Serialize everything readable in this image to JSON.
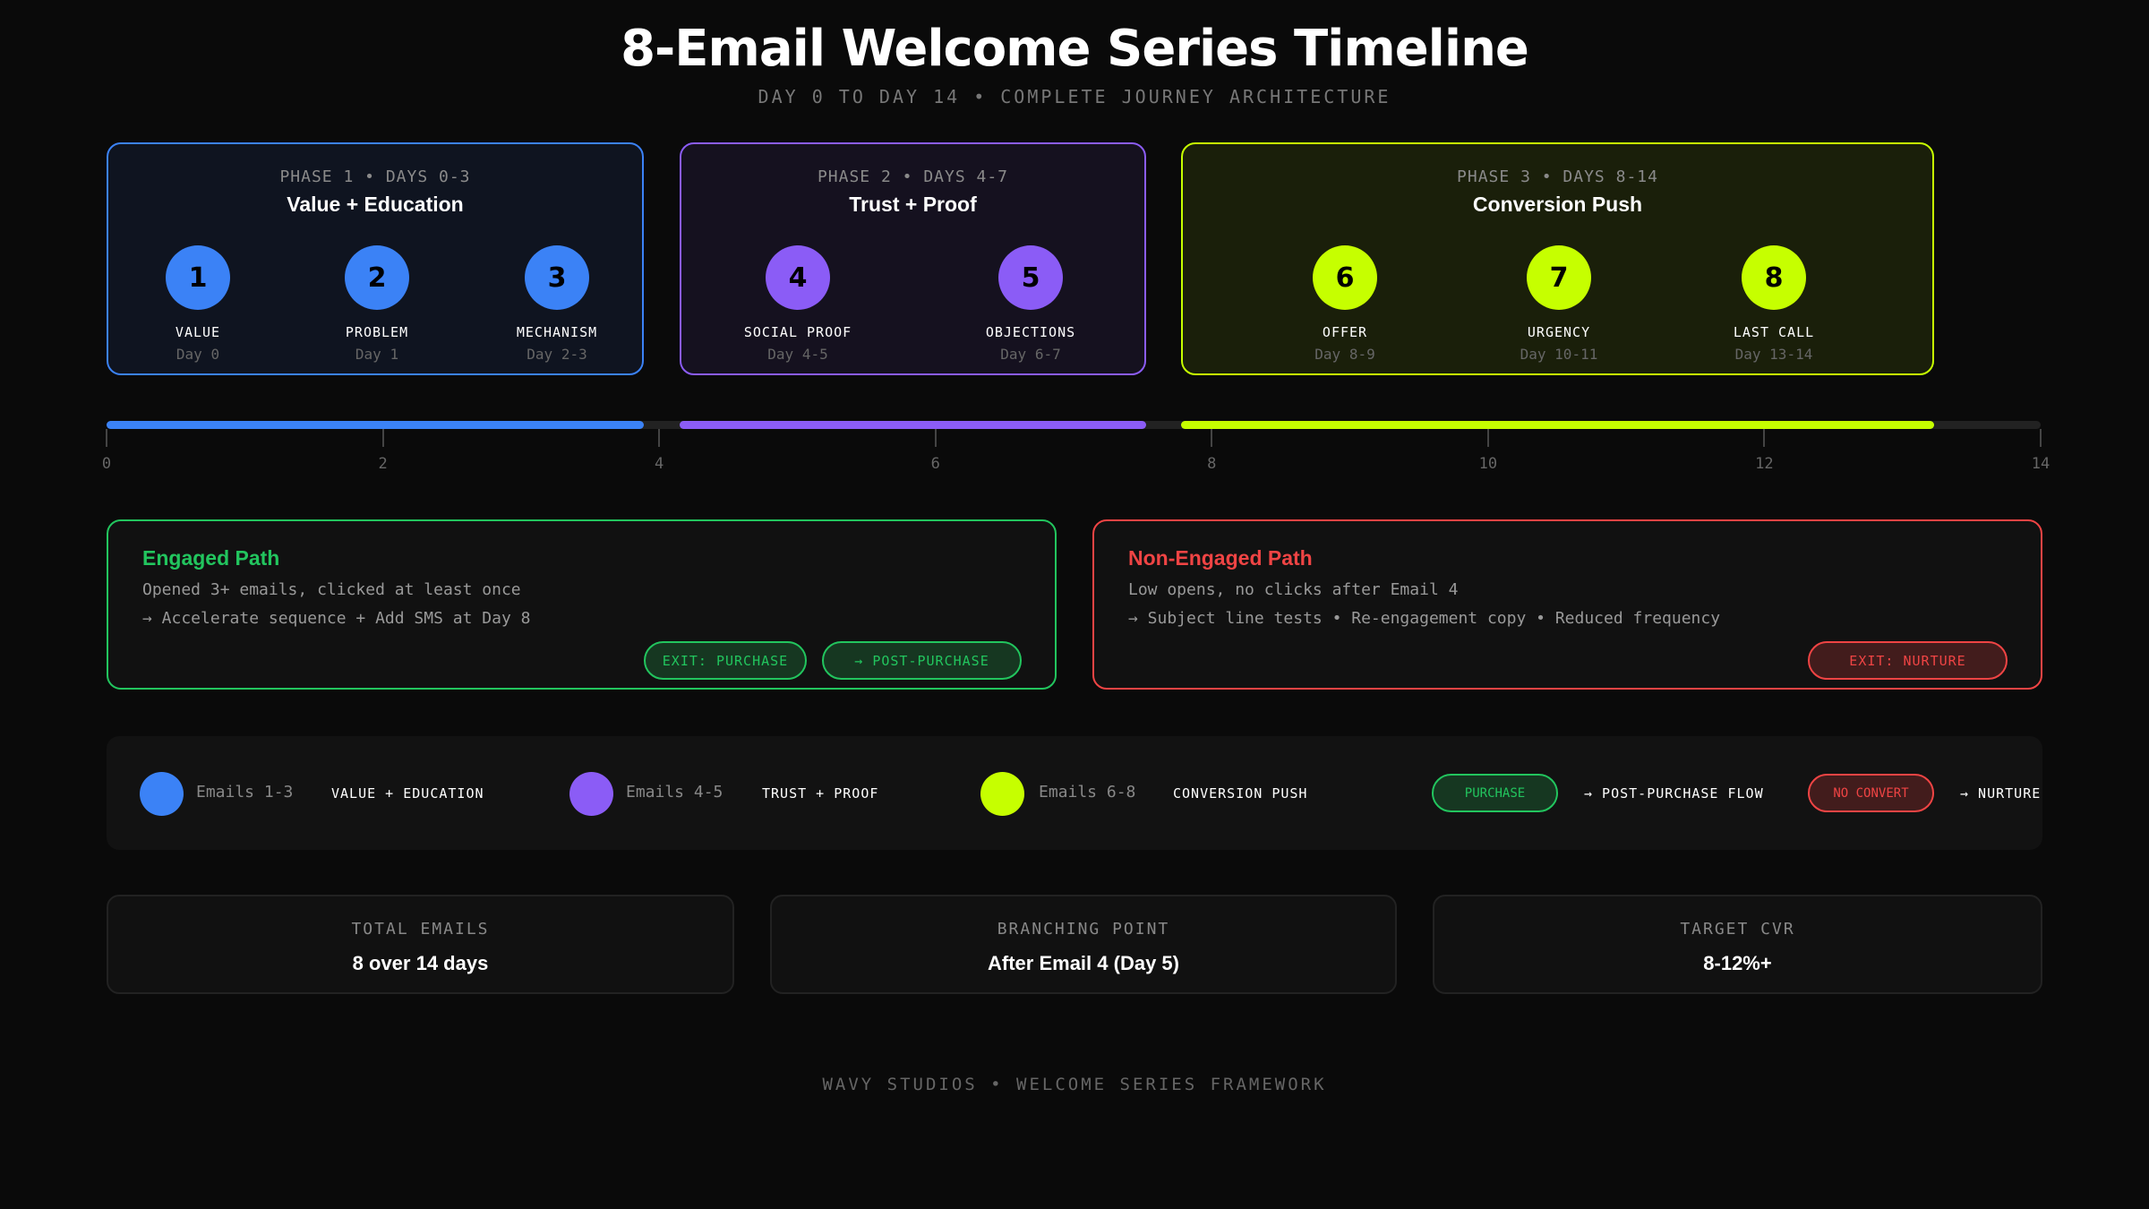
{
  "header": {
    "title": "8-Email Welcome Series Timeline",
    "subtitle": "DAY 0 TO DAY 14 • COMPLETE JOURNEY ARCHITECTURE"
  },
  "colors": {
    "phase1": "#3b82f6",
    "phase2": "#8b5cf6",
    "phase3": "#c6ff00",
    "engaged": "#22c55e",
    "non_engaged": "#ef4444"
  },
  "phases": [
    {
      "label": "PHASE 1 • DAYS 0-3",
      "title": "Value + Education",
      "emails": [
        {
          "num": "1",
          "name": "VALUE",
          "day": "Day 0"
        },
        {
          "num": "2",
          "name": "PROBLEM",
          "day": "Day 1"
        },
        {
          "num": "3",
          "name": "MECHANISM",
          "day": "Day 2-3"
        }
      ]
    },
    {
      "label": "PHASE 2 • DAYS 4-7",
      "title": "Trust + Proof",
      "emails": [
        {
          "num": "4",
          "name": "SOCIAL PROOF",
          "day": "Day 4-5"
        },
        {
          "num": "5",
          "name": "OBJECTIONS",
          "day": "Day 6-7"
        }
      ]
    },
    {
      "label": "PHASE 3 • DAYS 8-14",
      "title": "Conversion Push",
      "emails": [
        {
          "num": "6",
          "name": "OFFER",
          "day": "Day 8-9"
        },
        {
          "num": "7",
          "name": "URGENCY",
          "day": "Day 10-11"
        },
        {
          "num": "8",
          "name": "LAST CALL",
          "day": "Day 13-14"
        }
      ]
    }
  ],
  "timeline": {
    "ticks": [
      "0",
      "2",
      "4",
      "6",
      "8",
      "10",
      "12",
      "14"
    ]
  },
  "paths": {
    "engaged": {
      "title": "Engaged Path",
      "line1": "Opened 3+ emails, clicked at least once",
      "line2": "→ Accelerate sequence + Add SMS at Day 8",
      "buttons": [
        "EXIT: PURCHASE",
        "→ POST-PURCHASE"
      ]
    },
    "non_engaged": {
      "title": "Non-Engaged Path",
      "line1": "Low opens, no clicks after Email 4",
      "line2": "→ Subject line tests • Re-engagement copy • Reduced frequency",
      "buttons": [
        "EXIT: NURTURE"
      ]
    }
  },
  "legend": {
    "items": [
      {
        "text": "Emails 1-3",
        "label": "VALUE + EDUCATION"
      },
      {
        "text": "Emails 4-5",
        "label": "TRUST + PROOF"
      },
      {
        "text": "Emails 6-8",
        "label": "CONVERSION PUSH"
      }
    ],
    "purchase": {
      "pill": "PURCHASE",
      "label": "→ POST-PURCHASE FLOW"
    },
    "no_convert": {
      "pill": "NO CONVERT",
      "label": "→ NURTURE"
    }
  },
  "stats": [
    {
      "label": "TOTAL EMAILS",
      "value": "8 over 14 days"
    },
    {
      "label": "BRANCHING POINT",
      "value": "After Email 4 (Day 5)"
    },
    {
      "label": "TARGET CVR",
      "value": "8-12%+"
    }
  ],
  "footer": "WAVY STUDIOS • WELCOME SERIES FRAMEWORK"
}
